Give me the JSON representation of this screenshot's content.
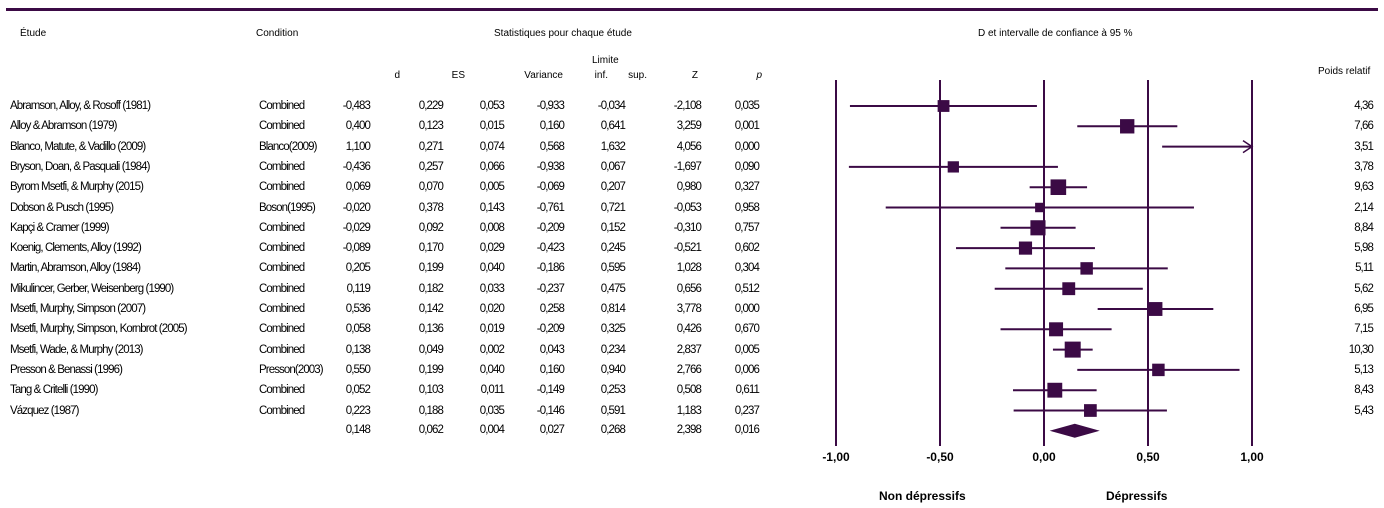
{
  "header": {
    "study": "Étude",
    "condition": "Condition",
    "stats_title": "Statistiques pour chaque étude",
    "plot_title": "D et intervalle de confiance à 95 %",
    "weight_title": "Poids relatif"
  },
  "columns": {
    "d": "d",
    "es": "ES",
    "variance": "Variance",
    "limite": "Limite",
    "inf": "inf.",
    "sup": "sup.",
    "z": "Z",
    "p": "p"
  },
  "rows": [
    {
      "study": "Abramson, Alloy, & Rosoff (1981)",
      "condition": "Combined",
      "d": "-0,483",
      "es": "0,229",
      "variance": "0,053",
      "inf": "-0,933",
      "sup": "-0,034",
      "z": "-2,108",
      "p": "0,035",
      "weight": "4,36"
    },
    {
      "study": "Alloy & Abramson (1979)",
      "condition": "Combined",
      "d": "0,400",
      "es": "0,123",
      "variance": "0,015",
      "inf": "0,160",
      "sup": "0,641",
      "z": "3,259",
      "p": "0,001",
      "weight": "7,66"
    },
    {
      "study": "Blanco, Matute, & Vadillo (2009)",
      "condition": "Blanco(2009)",
      "d": "1,100",
      "es": "0,271",
      "variance": "0,074",
      "inf": "0,568",
      "sup": "1,632",
      "z": "4,056",
      "p": "0,000",
      "weight": "3,51"
    },
    {
      "study": "Bryson, Doan, & Pasquali (1984)",
      "condition": "Combined",
      "d": "-0,436",
      "es": "0,257",
      "variance": "0,066",
      "inf": "-0,938",
      "sup": "0,067",
      "z": "-1,697",
      "p": "0,090",
      "weight": "3,78"
    },
    {
      "study": "Byrom Msetfi, & Murphy (2015)",
      "condition": "Combined",
      "d": "0,069",
      "es": "0,070",
      "variance": "0,005",
      "inf": "-0,069",
      "sup": "0,207",
      "z": "0,980",
      "p": "0,327",
      "weight": "9,63"
    },
    {
      "study": "Dobson & Pusch (1995)",
      "condition": "Boson(1995)",
      "d": "-0,020",
      "es": "0,378",
      "variance": "0,143",
      "inf": "-0,761",
      "sup": "0,721",
      "z": "-0,053",
      "p": "0,958",
      "weight": "2,14"
    },
    {
      "study": "Kapçi & Cramer (1999)",
      "condition": "Combined",
      "d": "-0,029",
      "es": "0,092",
      "variance": "0,008",
      "inf": "-0,209",
      "sup": "0,152",
      "z": "-0,310",
      "p": "0,757",
      "weight": "8,84"
    },
    {
      "study": "Koenig, Clements, Alloy (1992)",
      "condition": "Combined",
      "d": "-0,089",
      "es": "0,170",
      "variance": "0,029",
      "inf": "-0,423",
      "sup": "0,245",
      "z": "-0,521",
      "p": "0,602",
      "weight": "5,98"
    },
    {
      "study": "Martin, Abramson, Alloy (1984)",
      "condition": "Combined",
      "d": "0,205",
      "es": "0,199",
      "variance": "0,040",
      "inf": "-0,186",
      "sup": "0,595",
      "z": "1,028",
      "p": "0,304",
      "weight": "5,11"
    },
    {
      "study": "Mikulincer, Gerber, Weisenberg (1990)",
      "condition": "Combined",
      "d": "0,119",
      "es": "0,182",
      "variance": "0,033",
      "inf": "-0,237",
      "sup": "0,475",
      "z": "0,656",
      "p": "0,512",
      "weight": "5,62"
    },
    {
      "study": "Msetfi, Murphy, Simpson (2007)",
      "condition": "Combined",
      "d": "0,536",
      "es": "0,142",
      "variance": "0,020",
      "inf": "0,258",
      "sup": "0,814",
      "z": "3,778",
      "p": "0,000",
      "weight": "6,95"
    },
    {
      "study": "Msetfi, Murphy, Simpson, Kornbrot (2005)",
      "condition": "Combined",
      "d": "0,058",
      "es": "0,136",
      "variance": "0,019",
      "inf": "-0,209",
      "sup": "0,325",
      "z": "0,426",
      "p": "0,670",
      "weight": "7,15"
    },
    {
      "study": "Msetfi, Wade, & Murphy (2013)",
      "condition": "Combined",
      "d": "0,138",
      "es": "0,049",
      "variance": "0,002",
      "inf": "0,043",
      "sup": "0,234",
      "z": "2,837",
      "p": "0,005",
      "weight": "10,30"
    },
    {
      "study": "Presson & Benassi (1996)",
      "condition": "Presson(2003)",
      "d": "0,550",
      "es": "0,199",
      "variance": "0,040",
      "inf": "0,160",
      "sup": "0,940",
      "z": "2,766",
      "p": "0,006",
      "weight": "5,13"
    },
    {
      "study": "Tang & Critelli (1990)",
      "condition": "Combined",
      "d": "0,052",
      "es": "0,103",
      "variance": "0,011",
      "inf": "-0,149",
      "sup": "0,253",
      "z": "0,508",
      "p": "0,611",
      "weight": "8,43"
    },
    {
      "study": "Vázquez (1987)",
      "condition": "Combined",
      "d": "0,223",
      "es": "0,188",
      "variance": "0,035",
      "inf": "-0,146",
      "sup": "0,591",
      "z": "1,183",
      "p": "0,237",
      "weight": "5,43"
    }
  ],
  "summary": {
    "d": "0,148",
    "es": "0,062",
    "variance": "0,004",
    "inf": "0,027",
    "sup": "0,268",
    "z": "2,398",
    "p": "0,016"
  },
  "axis_labels": {
    "left": "Non dépressifs",
    "right": "Dépressifs"
  },
  "colors": {
    "accent": "#3b0a45"
  },
  "chart_data": {
    "type": "forest",
    "xlim": [
      -1.0,
      1.0
    ],
    "ticks": [
      -1.0,
      -0.5,
      0.0,
      0.5,
      1.0
    ],
    "tick_labels": [
      "-1,00",
      "-0,50",
      "0,00",
      "0,50",
      "1,00"
    ],
    "points": [
      {
        "d": -0.483,
        "lo": -0.933,
        "hi": -0.034,
        "w": 4.36
      },
      {
        "d": 0.4,
        "lo": 0.16,
        "hi": 0.641,
        "w": 7.66
      },
      {
        "d": 1.1,
        "lo": 0.568,
        "hi": 1.632,
        "w": 3.51
      },
      {
        "d": -0.436,
        "lo": -0.938,
        "hi": 0.067,
        "w": 3.78
      },
      {
        "d": 0.069,
        "lo": -0.069,
        "hi": 0.207,
        "w": 9.63
      },
      {
        "d": -0.02,
        "lo": -0.761,
        "hi": 0.721,
        "w": 2.14
      },
      {
        "d": -0.029,
        "lo": -0.209,
        "hi": 0.152,
        "w": 8.84
      },
      {
        "d": -0.089,
        "lo": -0.423,
        "hi": 0.245,
        "w": 5.98
      },
      {
        "d": 0.205,
        "lo": -0.186,
        "hi": 0.595,
        "w": 5.11
      },
      {
        "d": 0.119,
        "lo": -0.237,
        "hi": 0.475,
        "w": 5.62
      },
      {
        "d": 0.536,
        "lo": 0.258,
        "hi": 0.814,
        "w": 6.95
      },
      {
        "d": 0.058,
        "lo": -0.209,
        "hi": 0.325,
        "w": 7.15
      },
      {
        "d": 0.138,
        "lo": 0.043,
        "hi": 0.234,
        "w": 10.3
      },
      {
        "d": 0.55,
        "lo": 0.16,
        "hi": 0.94,
        "w": 5.13
      },
      {
        "d": 0.052,
        "lo": -0.149,
        "hi": 0.253,
        "w": 8.43
      },
      {
        "d": 0.223,
        "lo": -0.146,
        "hi": 0.591,
        "w": 5.43
      }
    ],
    "summary": {
      "d": 0.148,
      "lo": 0.027,
      "hi": 0.268
    }
  }
}
